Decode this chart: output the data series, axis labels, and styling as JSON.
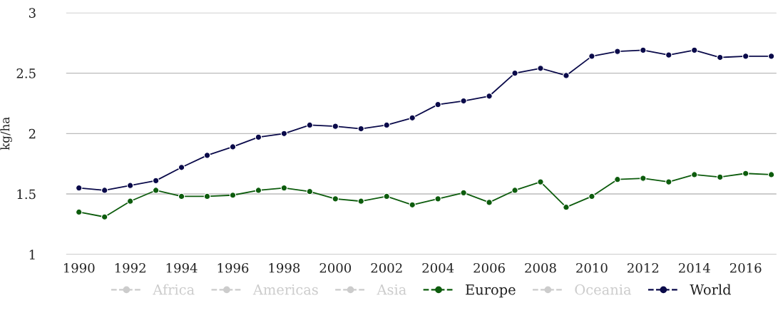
{
  "chart_data": {
    "type": "line",
    "ylabel": "kg/ha",
    "x": [
      1990,
      1991,
      1992,
      1993,
      1994,
      1995,
      1996,
      1997,
      1998,
      1999,
      2000,
      2001,
      2002,
      2003,
      2004,
      2005,
      2006,
      2007,
      2008,
      2009,
      2010,
      2011,
      2012,
      2013,
      2014,
      2015,
      2016,
      2017
    ],
    "series": [
      {
        "name": "Africa",
        "color": "#cccccc",
        "values": [
          null,
          null,
          null,
          null,
          null,
          null,
          null,
          null,
          null,
          null,
          null,
          null,
          null,
          null,
          null,
          null,
          null,
          null,
          null,
          null,
          null,
          null,
          null,
          null,
          null,
          null,
          null,
          null
        ]
      },
      {
        "name": "Americas",
        "color": "#cccccc",
        "values": [
          null,
          null,
          null,
          null,
          null,
          null,
          null,
          null,
          null,
          null,
          null,
          null,
          null,
          null,
          null,
          null,
          null,
          null,
          null,
          null,
          null,
          null,
          null,
          null,
          null,
          null,
          null,
          null
        ]
      },
      {
        "name": "Asia",
        "color": "#cccccc",
        "values": [
          null,
          null,
          null,
          null,
          null,
          null,
          null,
          null,
          null,
          null,
          null,
          null,
          null,
          null,
          null,
          null,
          null,
          null,
          null,
          null,
          null,
          null,
          null,
          null,
          null,
          null,
          null,
          null
        ]
      },
      {
        "name": "Europe",
        "color": "#0d5c0d",
        "values": [
          1.35,
          1.31,
          1.44,
          1.53,
          1.48,
          1.48,
          1.49,
          1.53,
          1.55,
          1.52,
          1.46,
          1.44,
          1.48,
          1.41,
          1.46,
          1.51,
          1.43,
          1.53,
          1.6,
          1.39,
          1.48,
          1.62,
          1.63,
          1.6,
          1.66,
          1.64,
          1.67,
          1.66
        ]
      },
      {
        "name": "Oceania",
        "color": "#cccccc",
        "values": [
          null,
          null,
          null,
          null,
          null,
          null,
          null,
          null,
          null,
          null,
          null,
          null,
          null,
          null,
          null,
          null,
          null,
          null,
          null,
          null,
          null,
          null,
          null,
          null,
          null,
          null,
          null,
          null
        ]
      },
      {
        "name": "World",
        "color": "#0a0a4a",
        "values": [
          1.55,
          1.53,
          1.57,
          1.61,
          1.72,
          1.82,
          1.89,
          1.97,
          2.0,
          2.07,
          2.06,
          2.04,
          2.07,
          2.13,
          2.24,
          2.27,
          2.31,
          2.5,
          2.54,
          2.48,
          2.64,
          2.68,
          2.69,
          2.65,
          2.69,
          2.63,
          2.64,
          2.64
        ]
      }
    ],
    "xlim": [
      1989.5,
      2017.2
    ],
    "xticks": [
      1990,
      1992,
      1994,
      1996,
      1998,
      2000,
      2002,
      2004,
      2006,
      2008,
      2010,
      2012,
      2014,
      2016
    ],
    "ylim": [
      1,
      3
    ],
    "yticks": [
      1,
      1.5,
      2,
      2.5,
      3
    ],
    "grid": "y",
    "legend": "bottom",
    "marker": "circle",
    "line_style": "solid"
  }
}
